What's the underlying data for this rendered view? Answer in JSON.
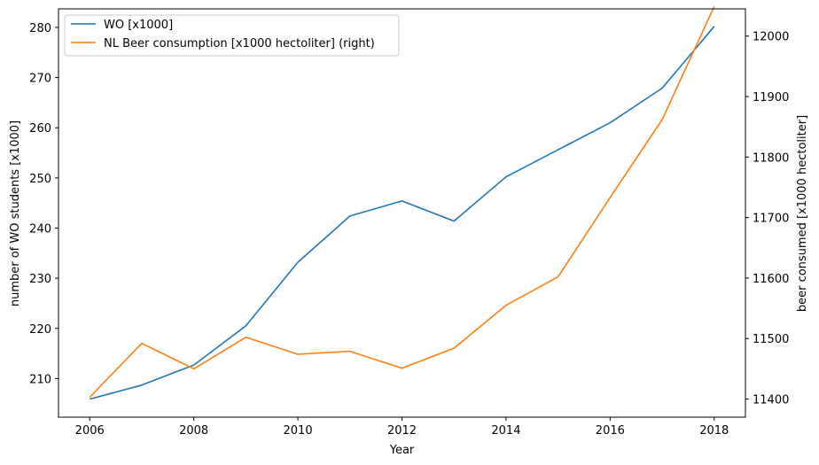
{
  "chart_data": {
    "type": "line",
    "title": "",
    "xlabel": "Year",
    "ylabel_left": "number of WO students [x1000]",
    "ylabel_right": "beer consumed [x1000 hectoliter]",
    "x": [
      2006,
      2007,
      2008,
      2009,
      2010,
      2011,
      2012,
      2013,
      2014,
      2015,
      2016,
      2017,
      2018
    ],
    "xlim": [
      2005.4,
      2018.6
    ],
    "ylim_left": [
      202.3,
      283.7
    ],
    "ylim_right": [
      11370,
      12045
    ],
    "x_ticks": [
      "2006",
      "2008",
      "2010",
      "2012",
      "2014",
      "2016",
      "2018"
    ],
    "y_ticks_left": [
      "210",
      "220",
      "230",
      "240",
      "250",
      "260",
      "270",
      "280"
    ],
    "y_ticks_right": [
      "11400",
      "11500",
      "11600",
      "11700",
      "11800",
      "11900",
      "12000"
    ],
    "grid": false,
    "legend_position": "top-left",
    "series": [
      {
        "name": "WO [x1000]",
        "axis": "left",
        "color": "#1f77b4",
        "values": [
          205.9,
          208.7,
          212.7,
          220.5,
          233.2,
          242.4,
          245.4,
          241.4,
          250.2,
          255.6,
          261.0,
          267.9,
          280.2
        ]
      },
      {
        "name": "NL Beer consumption [x1000 hectoliter] (right)",
        "axis": "right",
        "color": "#ff7f0e",
        "values": [
          11403,
          11492,
          11450,
          11502,
          11474,
          11479,
          11451,
          11484,
          11555,
          11602,
          11733,
          11862,
          12049
        ]
      }
    ]
  }
}
